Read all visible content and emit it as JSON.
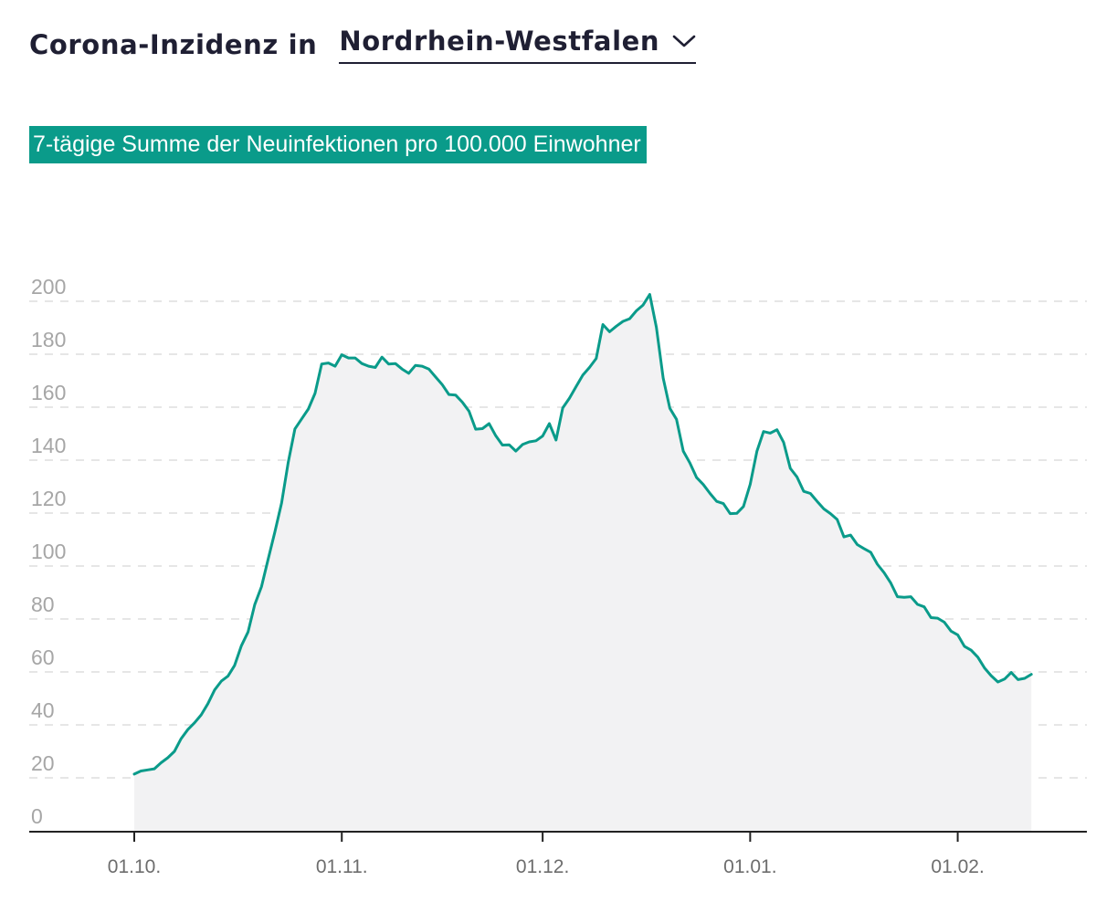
{
  "header": {
    "label": "Corona-Inzidenz in",
    "region": "Nordrhein-Westfalen"
  },
  "subtitle": "7-tägige Summe der Neuinfektionen pro 100.000 Einwohner",
  "colors": {
    "line": "#0a9b8a",
    "fill": "#f2f2f3",
    "grid": "#dedede",
    "axis": "#222222",
    "tag": "#0a9b8a"
  },
  "chart_data": {
    "type": "area",
    "ylim": [
      0,
      200
    ],
    "grid": true,
    "x_ticks": [
      "01.10.",
      "01.11.",
      "01.12.",
      "01.01.",
      "01.02."
    ],
    "y_ticks": [
      "0",
      "20",
      "40",
      "60",
      "80",
      "100",
      "120",
      "140",
      "160",
      "180",
      "200"
    ],
    "start_date": "01.10.",
    "values": [
      21.4,
      22.6,
      23.0,
      23.4,
      25.7,
      27.6,
      30.0,
      34.8,
      38.2,
      40.8,
      43.8,
      48.0,
      53.2,
      56.5,
      58.4,
      62.5,
      69.9,
      75.1,
      85.4,
      92.2,
      102.6,
      112.8,
      123.8,
      139.2,
      151.8,
      155.6,
      159.3,
      165.2,
      176.3,
      176.7,
      175.5,
      179.8,
      178.6,
      178.6,
      176.5,
      175.5,
      175.0,
      178.9,
      176.3,
      176.5,
      174.4,
      172.8,
      175.8,
      175.5,
      174.4,
      171.4,
      168.5,
      164.8,
      164.6,
      161.9,
      158.5,
      151.7,
      151.9,
      153.8,
      149.2,
      145.7,
      145.8,
      143.4,
      145.9,
      146.9,
      147.3,
      149.1,
      153.8,
      147.6,
      159.7,
      163.4,
      167.8,
      172.1,
      175.0,
      178.4,
      191.2,
      188.5,
      190.6,
      192.4,
      193.4,
      196.4,
      198.6,
      202.6,
      190.1,
      171.0,
      159.6,
      155.4,
      143.4,
      138.9,
      133.4,
      130.8,
      127.4,
      124.4,
      123.6,
      119.8,
      119.9,
      122.5,
      130.9,
      143.3,
      150.8,
      150.2,
      151.5,
      146.7,
      136.9,
      133.6,
      128.2,
      127.4,
      124.4,
      121.6,
      119.8,
      117.6,
      111.0,
      111.7,
      108.1,
      106.6,
      105.2,
      100.7,
      97.5,
      93.6,
      88.4,
      88.2,
      88.4,
      85.5,
      84.6,
      80.5,
      80.3,
      78.8,
      75.4,
      74.0,
      69.7,
      68.2,
      65.6,
      61.5,
      58.6,
      56.2,
      57.3,
      59.8,
      57.1,
      57.6,
      59.1
    ]
  }
}
